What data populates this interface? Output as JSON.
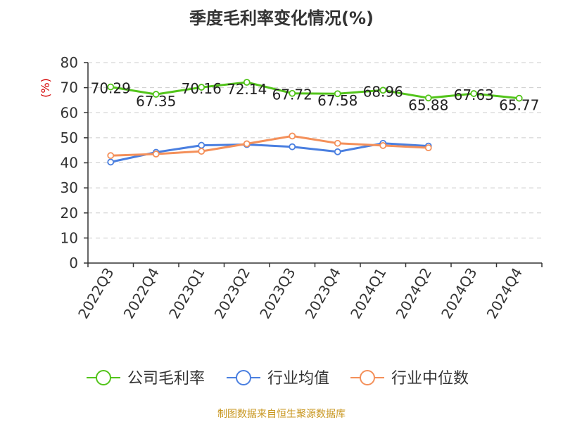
{
  "title": "季度毛利率变化情况(%)",
  "source": "制图数据来自恒生聚源数据库",
  "chart_data": {
    "type": "line",
    "title": "季度毛利率变化情况(%)",
    "xlabel": "",
    "ylabel": "(%)",
    "ylim": [
      0,
      80
    ],
    "yticks": [
      0,
      10,
      20,
      30,
      40,
      50,
      60,
      70,
      80
    ],
    "grid": true,
    "legend_position": "bottom",
    "categories": [
      "2022Q3",
      "2022Q4",
      "2023Q1",
      "2023Q2",
      "2023Q3",
      "2023Q4",
      "2024Q1",
      "2024Q2",
      "2024Q3",
      "2024Q4"
    ],
    "series": [
      {
        "name": "公司毛利率",
        "color": "#52c41a",
        "values": [
          70.29,
          67.35,
          70.16,
          72.14,
          67.72,
          67.58,
          68.96,
          65.88,
          67.63,
          65.77
        ],
        "labels": [
          "70.29",
          "67.35",
          "70.16",
          "72.14",
          "67.72",
          "67.58",
          "68.96",
          "65.88",
          "67.63",
          "65.77"
        ]
      },
      {
        "name": "行业均值",
        "color": "#4a7fe0",
        "values": [
          40.3,
          44.2,
          47.0,
          47.3,
          46.4,
          44.4,
          47.8,
          46.7,
          null,
          null
        ]
      },
      {
        "name": "行业中位数",
        "color": "#f4905a",
        "values": [
          42.9,
          43.5,
          44.6,
          47.6,
          50.7,
          47.8,
          46.9,
          46.0,
          null,
          null
        ]
      }
    ]
  }
}
